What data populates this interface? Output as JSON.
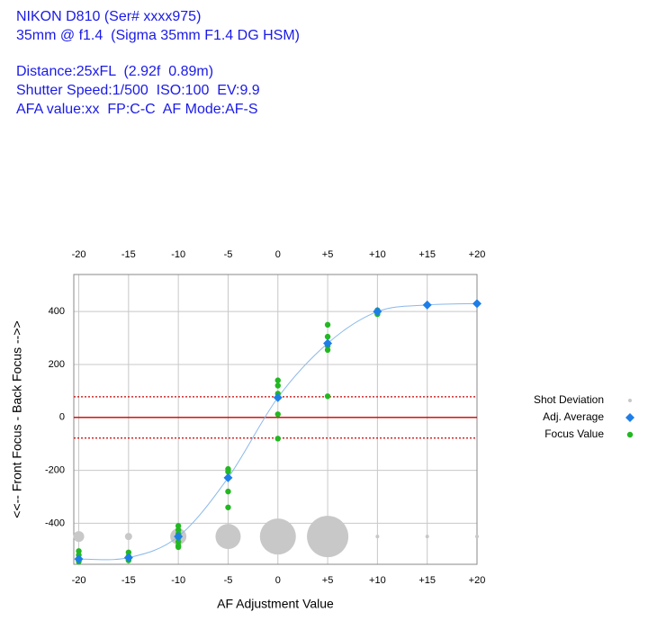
{
  "header": {
    "lines": [
      "NIKON D810 (Ser# xxxx975)",
      "35mm @ f1.4  (Sigma 35mm F1.4 DG HSM)",
      "Distance:25xFL  (2.92f  0.89m)",
      "Shutter Speed:1/500  ISO:100  EV:9.9",
      "AFA value:xx  FP:C-C  AF Mode:AF-S"
    ]
  },
  "chart_data": {
    "type": "scatter",
    "xlabel": "AF Adjustment Value",
    "ylabel": "<<-- Front Focus - Back Focus -->>",
    "xlim": [
      -20.5,
      20
    ],
    "ylim": [
      -555,
      540
    ],
    "xticks": [
      -20,
      -15,
      -10,
      -5,
      0,
      {
        "value": 5,
        "label": "+5"
      },
      {
        "value": 10,
        "label": "+10"
      },
      {
        "value": 15,
        "label": "+15"
      },
      {
        "value": 20,
        "label": "+20"
      }
    ],
    "yticks": [
      -400,
      -200,
      0,
      200,
      400
    ],
    "grid": true,
    "line_color": "#8ab8ea",
    "reference_lines": [
      {
        "value": 0,
        "color": "#cc0000",
        "dashed": false
      },
      {
        "value": 78,
        "color": "#cc0000",
        "dashed": true
      },
      {
        "value": -78,
        "color": "#cc0000",
        "dashed": true
      }
    ],
    "series": [
      {
        "name": "Shot Deviation",
        "color": "#c8c8c8",
        "x": [
          -20,
          -15,
          -10,
          -5,
          0,
          5,
          10,
          15,
          20
        ],
        "values": [
          -450,
          -450,
          -450,
          -450,
          -450,
          -450,
          -450,
          -450,
          -450
        ],
        "sizes": [
          6,
          4,
          9,
          14,
          20,
          23,
          2,
          2,
          2
        ]
      },
      {
        "name": "Adj. Average",
        "color": "#1e7ee8",
        "x": [
          -20,
          -15,
          -10,
          -5,
          0,
          5,
          10,
          15,
          20
        ],
        "values": [
          -535,
          -530,
          -450,
          -228,
          75,
          280,
          400,
          425,
          430
        ]
      },
      {
        "name": "Focus Value",
        "color": "#22b822",
        "x": [
          -20,
          -20,
          -20,
          -20,
          -15,
          -15,
          -15,
          -15,
          -10,
          -10,
          -10,
          -10,
          -10,
          -10,
          -10,
          -5,
          -5,
          -5,
          -5,
          0,
          0,
          0,
          0,
          0,
          5,
          5,
          5,
          5,
          5,
          10,
          10,
          10,
          15,
          20
        ],
        "values": [
          -505,
          -520,
          -540,
          -545,
          -510,
          -525,
          -535,
          -540,
          -410,
          -425,
          -440,
          -455,
          -470,
          -485,
          -490,
          -195,
          -205,
          -280,
          -340,
          140,
          120,
          90,
          12,
          -80,
          350,
          305,
          270,
          255,
          80,
          405,
          395,
          390,
          425,
          430
        ]
      }
    ]
  }
}
